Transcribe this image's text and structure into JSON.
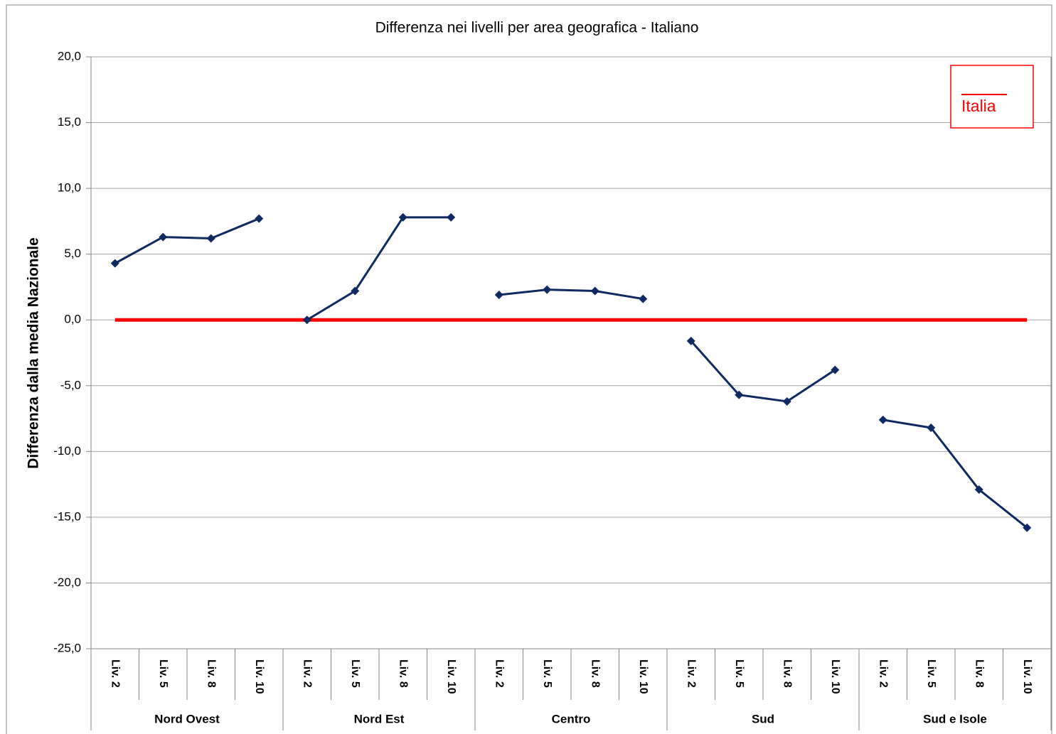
{
  "chart_data": {
    "type": "line",
    "title": "Differenza nei livelli per area geografica - Italiano",
    "y_label": "Differenza dalla media Nazionale",
    "groups_color": "#0f2a62",
    "groups": [
      {
        "name": "Nord Ovest",
        "categories": [
          "Liv. 2",
          "Liv. 5",
          "Liv. 8",
          "Liv. 10"
        ],
        "values": [
          4.3,
          6.3,
          6.2,
          7.7
        ]
      },
      {
        "name": "Nord Est",
        "categories": [
          "Liv. 2",
          "Liv. 5",
          "Liv. 8",
          "Liv. 10"
        ],
        "values": [
          0.0,
          2.2,
          7.8,
          7.8
        ]
      },
      {
        "name": "Centro",
        "categories": [
          "Liv. 2",
          "Liv. 5",
          "Liv. 8",
          "Liv. 10"
        ],
        "values": [
          1.9,
          2.3,
          2.2,
          1.6
        ]
      },
      {
        "name": "Sud",
        "categories": [
          "Liv. 2",
          "Liv. 5",
          "Liv. 8",
          "Liv. 10"
        ],
        "values": [
          -1.6,
          -5.7,
          -6.2,
          -3.8
        ]
      },
      {
        "name": "Sud e Isole",
        "categories": [
          "Liv. 2",
          "Liv. 5",
          "Liv. 8",
          "Liv. 10"
        ],
        "values": [
          -7.6,
          -8.2,
          -12.9,
          -15.8
        ]
      }
    ],
    "series": [
      {
        "name": "Italia",
        "color": "#ff0000",
        "values": [
          0,
          0,
          0,
          0,
          0,
          0,
          0,
          0,
          0,
          0,
          0,
          0,
          0,
          0,
          0,
          0,
          0,
          0,
          0,
          0
        ]
      }
    ],
    "ylim": [
      -25,
      20
    ],
    "yticks": [
      {
        "value": -25,
        "label": "-25,0"
      },
      {
        "value": -20,
        "label": "-20,0"
      },
      {
        "value": -15,
        "label": "-15,0"
      },
      {
        "value": -10,
        "label": "-10,0"
      },
      {
        "value": -5,
        "label": "-5,0"
      },
      {
        "value": 0,
        "label": "0,0"
      },
      {
        "value": 5,
        "label": "5,0"
      },
      {
        "value": 10,
        "label": "10,0"
      },
      {
        "value": 15,
        "label": "15,0"
      },
      {
        "value": 20,
        "label": "20,0"
      }
    ],
    "grid": true,
    "legend": "upper right"
  }
}
